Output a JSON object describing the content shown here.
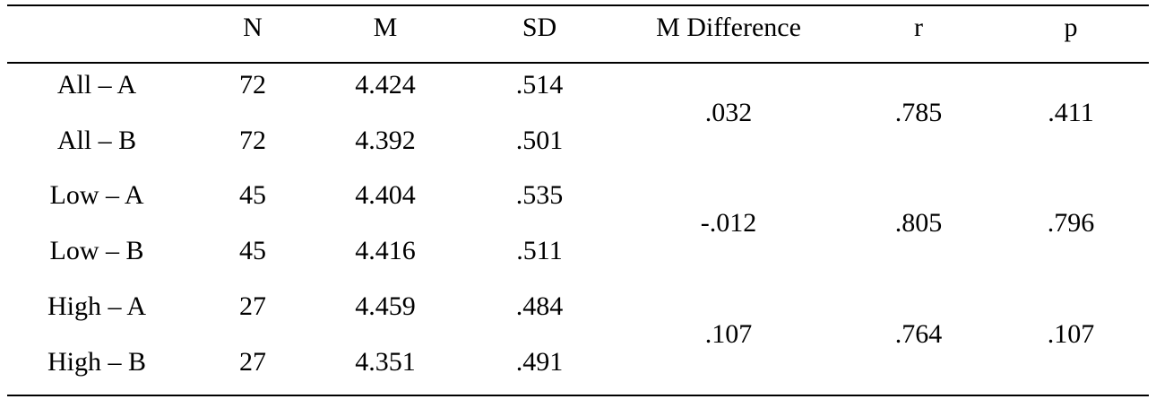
{
  "table": {
    "header": [
      "N",
      "M",
      "SD",
      "M Difference",
      "r",
      "p"
    ],
    "rows": [
      [
        "All – A",
        "72",
        "4.424",
        ".514"
      ],
      [
        "All – B",
        "72",
        "4.392",
        ".501"
      ],
      [
        "Low – A",
        "45",
        "4.404",
        ".535"
      ],
      [
        "Low – B",
        "45",
        "4.416",
        ".511"
      ],
      [
        "High – A",
        "27",
        "4.459",
        ".484"
      ],
      [
        "High – B",
        "27",
        "4.351",
        ".491"
      ]
    ],
    "groups": [
      [
        ".032",
        ".785",
        ".411"
      ],
      [
        "-.012",
        ".805",
        ".796"
      ],
      [
        ".107",
        ".764",
        ".107"
      ]
    ]
  }
}
